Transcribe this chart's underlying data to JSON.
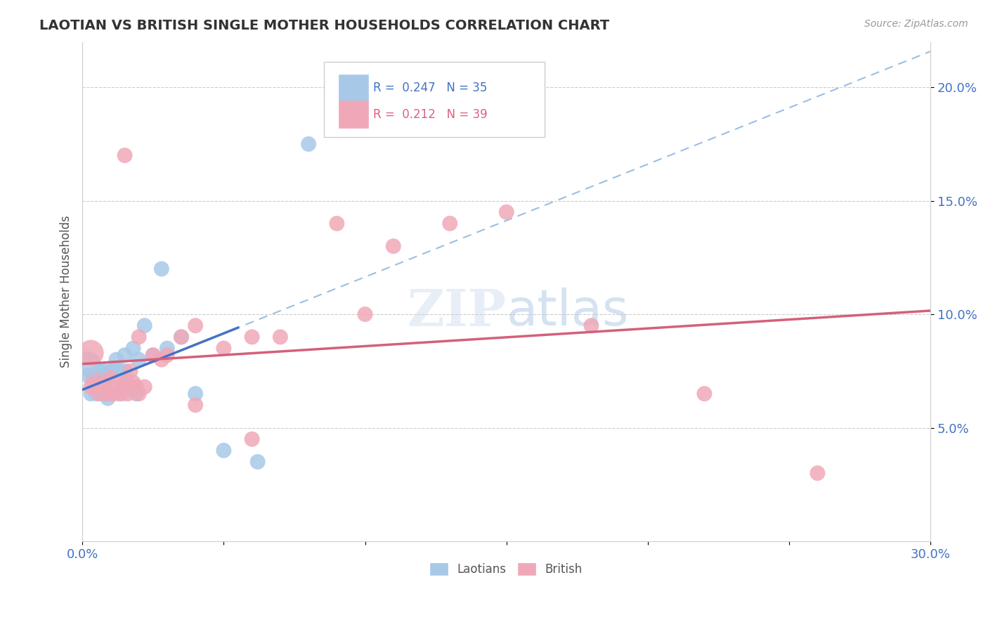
{
  "title": "LAOTIAN VS BRITISH SINGLE MOTHER HOUSEHOLDS CORRELATION CHART",
  "source": "Source: ZipAtlas.com",
  "ylabel_label": "Single Mother Households",
  "xlim": [
    0.0,
    0.3
  ],
  "ylim": [
    0.0,
    0.22
  ],
  "xticks": [
    0.0,
    0.05,
    0.1,
    0.15,
    0.2,
    0.25,
    0.3
  ],
  "yticks": [
    0.05,
    0.1,
    0.15,
    0.2
  ],
  "laotian_R": 0.247,
  "laotian_N": 35,
  "british_R": 0.212,
  "british_N": 39,
  "laotian_color": "#a8c8e8",
  "british_color": "#f0a8b8",
  "laotian_line_color": "#4472c4",
  "british_line_color": "#d4607a",
  "dashed_line_color": "#90b8e0",
  "laotian_x": [
    0.002,
    0.003,
    0.004,
    0.004,
    0.005,
    0.005,
    0.006,
    0.006,
    0.007,
    0.007,
    0.008,
    0.008,
    0.009,
    0.009,
    0.01,
    0.01,
    0.011,
    0.012,
    0.013,
    0.014,
    0.015,
    0.015,
    0.016,
    0.018,
    0.019,
    0.02,
    0.022,
    0.025,
    0.028,
    0.03,
    0.035,
    0.04,
    0.05,
    0.062,
    0.08
  ],
  "laotian_y": [
    0.073,
    0.065,
    0.07,
    0.068,
    0.072,
    0.065,
    0.075,
    0.068,
    0.073,
    0.065,
    0.075,
    0.065,
    0.072,
    0.063,
    0.075,
    0.065,
    0.075,
    0.08,
    0.075,
    0.065,
    0.082,
    0.075,
    0.07,
    0.085,
    0.065,
    0.08,
    0.095,
    0.082,
    0.12,
    0.085,
    0.09,
    0.065,
    0.04,
    0.035,
    0.175
  ],
  "british_x": [
    0.003,
    0.004,
    0.005,
    0.006,
    0.007,
    0.008,
    0.009,
    0.01,
    0.011,
    0.012,
    0.013,
    0.014,
    0.015,
    0.016,
    0.017,
    0.018,
    0.019,
    0.02,
    0.022,
    0.025,
    0.028,
    0.03,
    0.035,
    0.04,
    0.05,
    0.06,
    0.07,
    0.09,
    0.1,
    0.11,
    0.13,
    0.15,
    0.18,
    0.22,
    0.26,
    0.015,
    0.02,
    0.04,
    0.06
  ],
  "british_y": [
    0.068,
    0.072,
    0.068,
    0.065,
    0.068,
    0.07,
    0.065,
    0.072,
    0.065,
    0.068,
    0.065,
    0.068,
    0.07,
    0.065,
    0.075,
    0.07,
    0.068,
    0.065,
    0.068,
    0.082,
    0.08,
    0.082,
    0.09,
    0.095,
    0.085,
    0.09,
    0.09,
    0.14,
    0.1,
    0.13,
    0.14,
    0.145,
    0.095,
    0.065,
    0.03,
    0.17,
    0.09,
    0.06,
    0.045
  ]
}
